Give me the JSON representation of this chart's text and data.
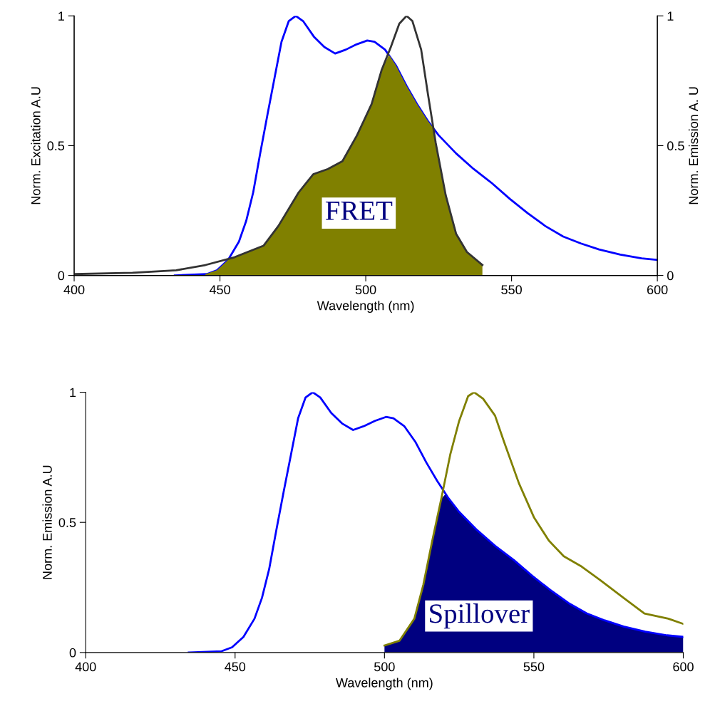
{
  "chart_data": [
    {
      "type": "line",
      "xlabel": "Wavelength (nm)",
      "ylabel": "Norm. Excitation A.U",
      "y2label": "Norm. Emission A. U",
      "xlim": [
        400,
        600
      ],
      "xticks": [
        400,
        450,
        500,
        550,
        600
      ],
      "ylim": [
        0,
        1
      ],
      "yticks": [
        0,
        0.5,
        1
      ],
      "y2lim": [
        0,
        1
      ],
      "y2ticks": [
        0,
        0.5,
        1
      ],
      "grid": false,
      "annotations": [
        "FRET"
      ],
      "series": [
        {
          "type": "area",
          "color": "#808000",
          "x": [
            445,
            449,
            452.8,
            456.5,
            460,
            465,
            470,
            477,
            482,
            487,
            492,
            497,
            502,
            505.4,
            508,
            510.3,
            514,
            517.6,
            521.3,
            523,
            524,
            527.4,
            531,
            534.7,
            540
          ],
          "values": [
            0.005,
            0.02,
            0.06,
            0.08,
            0.095,
            0.115,
            0.19,
            0.32,
            0.39,
            0.41,
            0.44,
            0.54,
            0.66,
            0.79,
            0.85,
            0.81,
            0.73,
            0.66,
            0.595,
            0.57,
            0.51,
            0.31,
            0.16,
            0.09,
            0.04
          ]
        },
        {
          "color": "#333333",
          "x": [
            400,
            420,
            435,
            445,
            455,
            465,
            470,
            477,
            482,
            487,
            492,
            497,
            502,
            505.4,
            508.6,
            511.5,
            514,
            516,
            519,
            521.3,
            524,
            527.4,
            531,
            534.7,
            540
          ],
          "values": [
            0.005,
            0.01,
            0.02,
            0.04,
            0.07,
            0.115,
            0.19,
            0.32,
            0.39,
            0.41,
            0.44,
            0.54,
            0.66,
            0.79,
            0.88,
            0.97,
            1.0,
            0.98,
            0.87,
            0.7,
            0.51,
            0.31,
            0.16,
            0.09,
            0.04
          ]
        },
        {
          "color": "#0000ff",
          "axis": "y2",
          "x": [
            434.5,
            445.5,
            449,
            452.8,
            456.5,
            459,
            461.4,
            463.8,
            466.3,
            468.7,
            471.1,
            473.6,
            476,
            478.5,
            482.2,
            485.8,
            489.5,
            493.2,
            496.8,
            500.5,
            503,
            506.6,
            510.3,
            514,
            517.6,
            521.3,
            525,
            531,
            537,
            543.3,
            549.4,
            555.5,
            561.6,
            567.7,
            573.8,
            580,
            587.3,
            594.6,
            600
          ],
          "values": [
            0,
            0.005,
            0.02,
            0.06,
            0.13,
            0.21,
            0.32,
            0.47,
            0.62,
            0.76,
            0.9,
            0.98,
            1.0,
            0.98,
            0.92,
            0.88,
            0.855,
            0.87,
            0.89,
            0.905,
            0.9,
            0.87,
            0.81,
            0.73,
            0.66,
            0.595,
            0.54,
            0.47,
            0.41,
            0.355,
            0.295,
            0.24,
            0.19,
            0.15,
            0.123,
            0.1,
            0.08,
            0.066,
            0.06
          ]
        }
      ]
    },
    {
      "type": "line",
      "xlabel": "Wavelength (nm)",
      "ylabel": "Norm. Emission A.U",
      "xlim": [
        400,
        600
      ],
      "xticks": [
        400,
        450,
        500,
        550,
        600
      ],
      "ylim": [
        0,
        1
      ],
      "yticks": [
        0,
        0.5,
        1
      ],
      "grid": false,
      "annotations": [
        "Spillover"
      ],
      "series": [
        {
          "type": "area",
          "color": "#000080",
          "x": [
            500,
            505,
            510,
            513,
            516,
            519,
            520.5,
            525,
            531,
            537,
            543.3,
            549.4,
            555.5,
            561.6,
            567.7,
            573.8,
            580,
            587.3,
            594.6,
            600
          ],
          "values": [
            0.027,
            0.045,
            0.13,
            0.26,
            0.43,
            0.59,
            0.61,
            0.54,
            0.47,
            0.41,
            0.355,
            0.295,
            0.24,
            0.19,
            0.15,
            0.123,
            0.1,
            0.08,
            0.066,
            0.06
          ]
        },
        {
          "color": "#0000ff",
          "x": [
            434.5,
            445.5,
            449,
            452.8,
            456.5,
            459,
            461.4,
            463.8,
            466.3,
            468.7,
            471.1,
            473.6,
            476,
            478.5,
            482.2,
            485.8,
            489.5,
            493.2,
            496.8,
            500.5,
            503,
            506.6,
            510.3,
            514,
            517.6,
            521.3,
            525,
            531,
            537,
            543.3,
            549.4,
            555.5,
            561.6,
            567.7,
            573.8,
            580,
            587.3,
            594.6,
            600
          ],
          "values": [
            0,
            0.005,
            0.02,
            0.06,
            0.13,
            0.21,
            0.32,
            0.47,
            0.62,
            0.76,
            0.9,
            0.98,
            1.0,
            0.98,
            0.92,
            0.88,
            0.855,
            0.87,
            0.89,
            0.905,
            0.9,
            0.87,
            0.81,
            0.73,
            0.66,
            0.595,
            0.54,
            0.47,
            0.41,
            0.355,
            0.295,
            0.24,
            0.19,
            0.15,
            0.123,
            0.1,
            0.08,
            0.066,
            0.06
          ]
        },
        {
          "color": "#808000",
          "x": [
            500,
            505,
            510,
            513,
            516,
            519,
            522,
            525,
            528,
            530,
            533,
            537,
            540,
            545,
            550,
            555,
            560,
            566,
            572,
            580,
            587,
            595,
            600
          ],
          "values": [
            0.027,
            0.045,
            0.13,
            0.26,
            0.43,
            0.59,
            0.76,
            0.89,
            0.985,
            1.0,
            0.975,
            0.91,
            0.81,
            0.65,
            0.52,
            0.43,
            0.37,
            0.33,
            0.28,
            0.21,
            0.15,
            0.13,
            0.11
          ]
        }
      ]
    }
  ]
}
